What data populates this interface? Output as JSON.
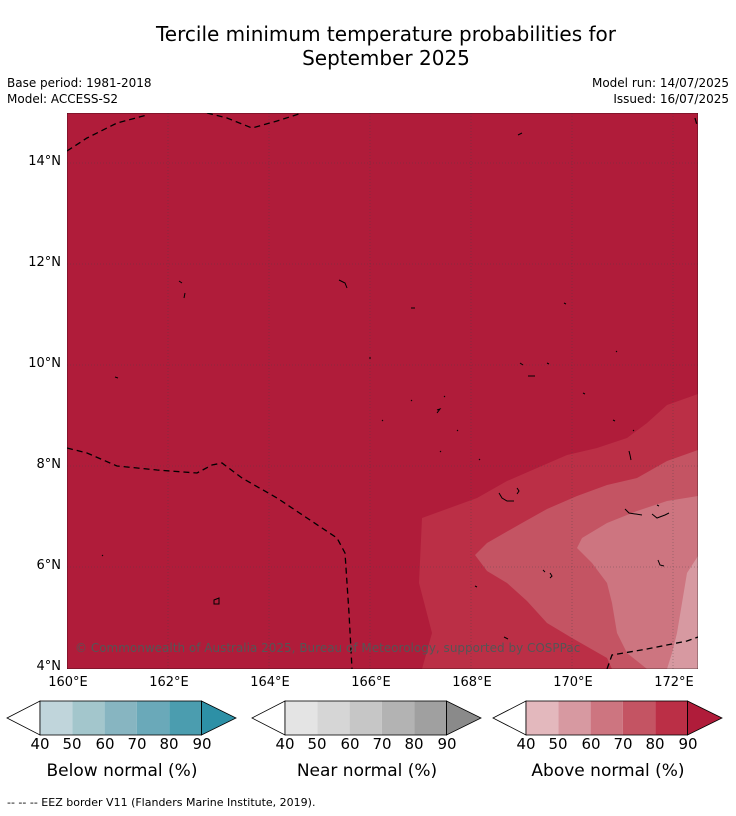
{
  "title_line1": "Tercile minimum temperature probabilities for",
  "title_line2": "September 2025",
  "meta": {
    "base_period": "Base period: 1981-2018",
    "model": "Model: ACCESS-S2",
    "model_run": "Model run: 14/07/2025",
    "issued": "Issued: 16/07/2025"
  },
  "axes": {
    "y_ticks": [
      "14°N",
      "12°N",
      "10°N",
      "8°N",
      "6°N",
      "4°N"
    ],
    "x_ticks": [
      "160°E",
      "162°E",
      "164°E",
      "166°E",
      "168°E",
      "170°E",
      "172°E"
    ]
  },
  "copyright": "© Commonwealth of Australia 2025, Bureau of Meteorology, supported by COSPPac",
  "legends": [
    {
      "title": "Below normal (%)",
      "ticks": [
        "40",
        "50",
        "60",
        "70",
        "80",
        "90"
      ],
      "colors": [
        "#c0d5db",
        "#a3c6cc",
        "#87b5c1",
        "#6aa9b9",
        "#4b9daf",
        "#2d90a6"
      ]
    },
    {
      "title": "Near normal (%)",
      "ticks": [
        "40",
        "50",
        "60",
        "70",
        "80",
        "90"
      ],
      "colors": [
        "#e4e4e4",
        "#d6d6d6",
        "#c6c6c6",
        "#b3b3b3",
        "#a0a0a0",
        "#8a8a8a"
      ]
    },
    {
      "title": "Above normal (%)",
      "ticks": [
        "40",
        "50",
        "60",
        "70",
        "80",
        "90"
      ],
      "colors": [
        "#e3b8bd",
        "#d799a1",
        "#cd7580",
        "#c45463",
        "#bb2f46",
        "#b01c3a"
      ]
    }
  ],
  "map_colors": {
    "above_90": "#b01c3a",
    "above_80": "#bb2f46",
    "above_70": "#c45463",
    "above_60": "#cd7580",
    "above_50": "#d799a1"
  },
  "footer": "--  --  -- EEZ border V11 (Flanders Marine Institute, 2019)."
}
